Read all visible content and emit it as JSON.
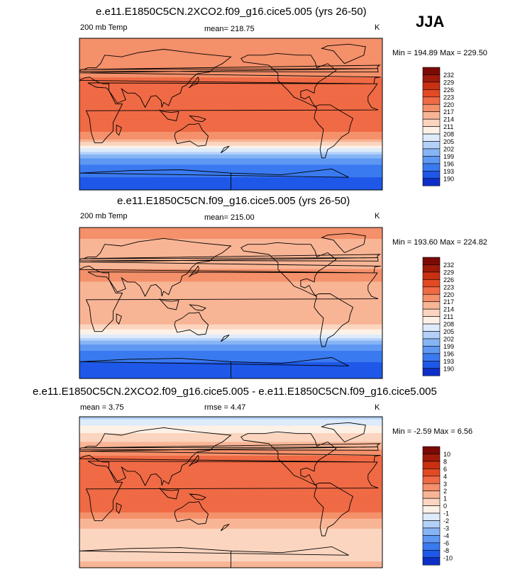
{
  "season": "JJA",
  "palette_temp": [
    "#08008a",
    "#0d2fc7",
    "#1f58e8",
    "#3a7af0",
    "#5f98f3",
    "#86b4f5",
    "#b3d0f8",
    "#ddebfb",
    "#fdf1e6",
    "#fbd5bf",
    "#f8b595",
    "#f4906a",
    "#ef6a45",
    "#e34a24",
    "#c93012",
    "#9f1a08",
    "#7a0a03"
  ],
  "chart_data": [
    {
      "type": "heatmap",
      "title": "e.e11.E1850C5CN.2XCO2.f09_g16.cice5.005 (yrs 26-50)",
      "left_label": "200 mb Temp",
      "center_label": "mean= 218.75",
      "units": "K",
      "minmax": "Min = 194.89 Max = 229.50",
      "levels": [
        "232",
        "229",
        "226",
        "223",
        "220",
        "217",
        "214",
        "211",
        "208",
        "205",
        "202",
        "199",
        "196",
        "193",
        "190"
      ],
      "zonal_profile": [
        {
          "lat": 90,
          "value": 221.5
        },
        {
          "lat": 70,
          "value": 220
        },
        {
          "lat": 50,
          "value": 222
        },
        {
          "lat": 35,
          "value": 224.5
        },
        {
          "lat": 15,
          "value": 225
        },
        {
          "lat": 0,
          "value": 225.5
        },
        {
          "lat": -15,
          "value": 225
        },
        {
          "lat": -28,
          "value": 221
        },
        {
          "lat": -40,
          "value": 212
        },
        {
          "lat": -50,
          "value": 203
        },
        {
          "lat": -60,
          "value": 199
        },
        {
          "lat": -75,
          "value": 196
        },
        {
          "lat": -90,
          "value": 195
        }
      ]
    },
    {
      "type": "heatmap",
      "title": "e.e11.E1850C5CN.f09_g16.cice5.005 (yrs 26-50)",
      "left_label": "200 mb Temp",
      "center_label": "mean= 215.00",
      "units": "K",
      "minmax": "Min = 193.60 Max = 224.82",
      "levels": [
        "232",
        "229",
        "226",
        "223",
        "220",
        "217",
        "214",
        "211",
        "208",
        "205",
        "202",
        "199",
        "196",
        "193",
        "190"
      ],
      "zonal_profile": [
        {
          "lat": 90,
          "value": 221
        },
        {
          "lat": 70,
          "value": 219.5
        },
        {
          "lat": 50,
          "value": 219
        },
        {
          "lat": 35,
          "value": 220.5
        },
        {
          "lat": 15,
          "value": 219.5
        },
        {
          "lat": 0,
          "value": 219.5
        },
        {
          "lat": -15,
          "value": 219.5
        },
        {
          "lat": -28,
          "value": 216.5
        },
        {
          "lat": -40,
          "value": 209
        },
        {
          "lat": -50,
          "value": 201
        },
        {
          "lat": -60,
          "value": 198
        },
        {
          "lat": -75,
          "value": 195
        },
        {
          "lat": -90,
          "value": 194
        }
      ]
    },
    {
      "type": "heatmap",
      "title": "e.e11.E1850C5CN.2XCO2.f09_g16.cice5.005 - e.e11.E1850C5CN.f09_g16.cice5.005",
      "left_label": "mean =  3.75",
      "center_label": "rmse =  4.47",
      "units": "K",
      "minmax": "Min = -2.59 Max =  6.56",
      "levels": [
        "10",
        "8",
        "6",
        "4",
        "3",
        "2",
        "1",
        "0",
        "-1",
        "-2",
        "-3",
        "-4",
        "-6",
        "-8",
        "-10"
      ],
      "zonal_profile": [
        {
          "lat": 90,
          "value": -1.5
        },
        {
          "lat": 75,
          "value": 0.5
        },
        {
          "lat": 60,
          "value": 2
        },
        {
          "lat": 45,
          "value": 3.8
        },
        {
          "lat": 30,
          "value": 5.5
        },
        {
          "lat": 15,
          "value": 6
        },
        {
          "lat": 0,
          "value": 5.8
        },
        {
          "lat": -15,
          "value": 5
        },
        {
          "lat": -30,
          "value": 3.2
        },
        {
          "lat": -45,
          "value": 1.8
        },
        {
          "lat": -60,
          "value": 1
        },
        {
          "lat": -75,
          "value": 1.5
        },
        {
          "lat": -90,
          "value": 2.5
        }
      ]
    }
  ]
}
